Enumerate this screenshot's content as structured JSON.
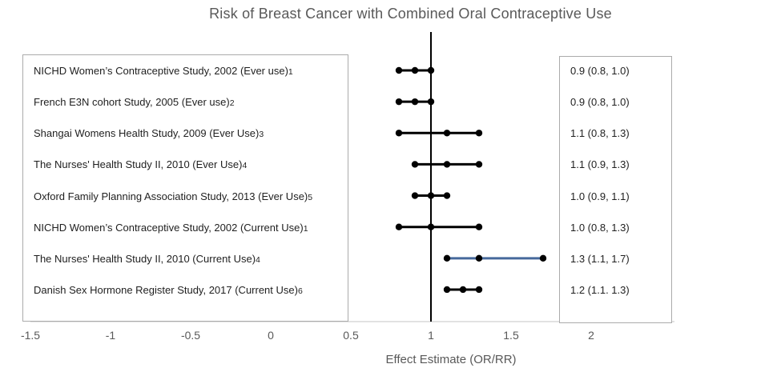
{
  "title": "Risk of Breast Cancer with Combined Oral Contraceptive Use",
  "x_axis": {
    "label": "Effect Estimate (OR/RR)",
    "tick_labels": [
      "-1.5",
      "-1",
      "-0.5",
      "0",
      "0.5",
      "1",
      "1.5",
      "2"
    ]
  },
  "colors": {
    "title_text": "#595959",
    "axis_text": "#595959",
    "body_text": "#1f1f1f",
    "box_border": "#ababab",
    "axis_line": "#c6c6c6",
    "reference_line": "#000000",
    "marker": "#000000",
    "default_ci_line": "#000000",
    "accent_ci_line": "#46699c"
  },
  "chart_data": {
    "type": "scatter",
    "subtype": "forest-plot",
    "title": "Risk of Breast Cancer with Combined Oral Contraceptive Use",
    "xlabel": "Effect Estimate (OR/RR)",
    "xlim": [
      -1.5,
      2.35
    ],
    "x_ticks": [
      -1.5,
      -1,
      -0.5,
      0,
      0.5,
      1,
      1.5,
      2
    ],
    "reference_line_x": 1,
    "grid": false,
    "legend": "none",
    "studies": [
      {
        "label": "NICHD Women’s Contraceptive Study, 2002 (Ever use)",
        "ref": "1",
        "estimate_text": "0.9 (0.8, 1.0)",
        "point": 0.9,
        "ci_low": 0.8,
        "ci_high": 1.0,
        "line_color": "#000000"
      },
      {
        "label": "French E3N cohort Study, 2005  (Ever use)",
        "ref": "2",
        "estimate_text": "0.9 (0.8, 1.0)",
        "point": 0.9,
        "ci_low": 0.8,
        "ci_high": 1.0,
        "line_color": "#000000"
      },
      {
        "label": "Shangai Womens Health Study, 2009 (Ever Use)",
        "ref": "3",
        "estimate_text": "1.1 (0.8, 1.3)",
        "point": 1.1,
        "ci_low": 0.8,
        "ci_high": 1.3,
        "line_color": "#000000"
      },
      {
        "label": "The Nurses' Health Study II, 2010 (Ever Use)",
        "ref": "4",
        "estimate_text": "1.1 (0.9, 1.3)",
        "point": 1.1,
        "ci_low": 0.9,
        "ci_high": 1.3,
        "line_color": "#000000"
      },
      {
        "label": "Oxford Family Planning Association Study, 2013 (Ever Use)",
        "ref": "5",
        "estimate_text": "1.0 (0.9, 1.1)",
        "point": 1.0,
        "ci_low": 0.9,
        "ci_high": 1.1,
        "line_color": "#000000"
      },
      {
        "label": "NICHD Women’s Contraceptive Study, 2002  (Current Use)",
        "ref": "1",
        "estimate_text": "1.0 (0.8, 1.3)",
        "point": 1.0,
        "ci_low": 0.8,
        "ci_high": 1.3,
        "line_color": "#000000"
      },
      {
        "label": "The Nurses' Health Study II, 2010  (Current Use)",
        "ref": "4",
        "estimate_text": "1.3 (1.1, 1.7)",
        "point": 1.3,
        "ci_low": 1.1,
        "ci_high": 1.7,
        "line_color": "#46699c"
      },
      {
        "label": "Danish Sex Hormone Register Study, 2017 (Current Use)",
        "ref": "6",
        "estimate_text": "1.2 (1.1. 1.3)",
        "point": 1.2,
        "ci_low": 1.1,
        "ci_high": 1.3,
        "line_color": "#000000"
      }
    ]
  }
}
